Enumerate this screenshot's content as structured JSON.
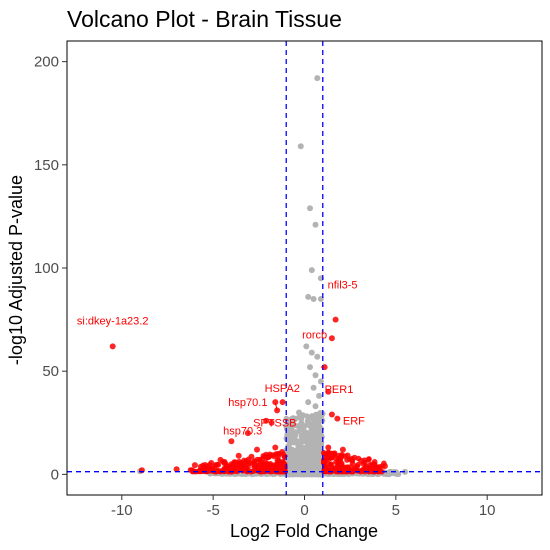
{
  "chart_data": {
    "type": "scatter",
    "title": "Volcano Plot - Brain Tissue",
    "xlabel": "Log2 Fold Change",
    "ylabel": "-log10 Adjusted P-value",
    "xlim": [
      -13,
      13
    ],
    "ylim": [
      -10,
      210
    ],
    "x_ticks": [
      -10,
      -5,
      0,
      5,
      10
    ],
    "y_ticks": [
      0,
      50,
      100,
      150,
      200
    ],
    "grid": false,
    "legend": "none",
    "thresholds": {
      "log2fc": [
        -1,
        1
      ],
      "neg_log10_padj": 1.3
    },
    "colors": {
      "significant": "#ff0000",
      "not_significant": "#b3b3b3",
      "threshold_line": "#0000ff"
    },
    "not_significant_points": [
      [
        -0.2,
        159
      ],
      [
        0.7,
        192
      ],
      [
        0.3,
        129
      ],
      [
        0.6,
        121
      ],
      [
        0.4,
        99
      ],
      [
        0.9,
        95
      ],
      [
        0.2,
        86
      ],
      [
        0.5,
        85
      ],
      [
        0.9,
        85
      ],
      [
        0.1,
        62
      ],
      [
        0.4,
        59
      ],
      [
        0.7,
        57
      ],
      [
        0.3,
        52
      ],
      [
        0.6,
        48
      ],
      [
        0.9,
        45
      ],
      [
        0.5,
        42
      ],
      [
        0.8,
        38
      ],
      [
        0.2,
        35
      ],
      [
        0.6,
        33
      ],
      [
        -0.3,
        30
      ],
      [
        0.4,
        28
      ],
      [
        -0.6,
        26
      ],
      [
        0.8,
        26
      ],
      [
        -0.1,
        22
      ],
      [
        0.5,
        21
      ],
      [
        -0.7,
        20
      ],
      [
        0.7,
        18
      ],
      [
        -0.4,
        16
      ],
      [
        0.2,
        15
      ],
      [
        0.9,
        14
      ],
      [
        -0.8,
        12
      ],
      [
        0.1,
        11
      ],
      [
        -0.2,
        9
      ],
      [
        0.6,
        9
      ],
      [
        -0.9,
        7
      ],
      [
        0.3,
        6
      ],
      [
        -0.5,
        5
      ],
      [
        0.8,
        4
      ],
      [
        -0.1,
        3
      ],
      [
        0.5,
        2
      ],
      [
        5.5,
        1.2
      ],
      [
        -9.0,
        1.5
      ]
    ],
    "significant_points": [
      [
        -10.5,
        62
      ],
      [
        1.7,
        75
      ],
      [
        1.5,
        66
      ],
      [
        1.1,
        52
      ],
      [
        1.3,
        40
      ],
      [
        1.5,
        29
      ],
      [
        1.8,
        27
      ],
      [
        -1.2,
        35
      ],
      [
        -1.6,
        35
      ],
      [
        -1.5,
        31
      ],
      [
        -2.1,
        26
      ],
      [
        -1.8,
        25
      ],
      [
        -3.1,
        20
      ],
      [
        -4.0,
        16
      ],
      [
        -1.6,
        13
      ],
      [
        -2.6,
        12
      ],
      [
        1.3,
        13
      ],
      [
        2.1,
        12
      ],
      [
        1.6,
        10
      ],
      [
        -8.9,
        2.0
      ],
      [
        -6.0,
        4.5
      ],
      [
        -5.1,
        5.5
      ],
      [
        -4.6,
        7.0
      ],
      [
        -3.6,
        9.0
      ],
      [
        -2.9,
        8.5
      ],
      [
        -2.1,
        9.5
      ],
      [
        -1.4,
        10.0
      ],
      [
        1.2,
        9.5
      ],
      [
        1.9,
        9.0
      ],
      [
        2.6,
        7.5
      ],
      [
        3.1,
        6.5
      ],
      [
        3.6,
        4.5
      ],
      [
        4.1,
        3.5
      ],
      [
        4.4,
        4.0
      ],
      [
        -7.0,
        2.5
      ],
      [
        -5.6,
        2.5
      ]
    ],
    "annotations": [
      {
        "text": "si:dkey-1a23.2",
        "x": -10.5,
        "y": 62
      },
      {
        "text": "nfil3-5",
        "x": 1.7,
        "y": 75
      },
      {
        "text": "rorcb",
        "x": 0.8,
        "y": 59
      },
      {
        "text": "PER1",
        "x": 1.1,
        "y": 52
      },
      {
        "text": "HSPA2",
        "x": -1.2,
        "y": 35
      },
      {
        "text": "hsp70.1",
        "x": -1.6,
        "y": 35
      },
      {
        "text": "ERF",
        "x": 1.5,
        "y": 29
      },
      {
        "text": "hsp70.3",
        "x": -2.1,
        "y": 26
      },
      {
        "text": "SPTSSB",
        "x": -1.5,
        "y": 31
      }
    ]
  }
}
